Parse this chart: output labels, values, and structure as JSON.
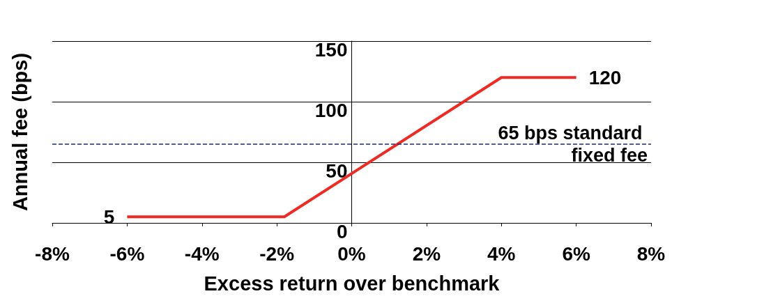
{
  "chart_data": {
    "type": "line",
    "xlabel": "Excess return over benchmark",
    "ylabel": "Annual fee (bps)",
    "x": [
      -6,
      -1.8,
      4,
      6
    ],
    "series": [
      {
        "color": "#ee2a24",
        "values": [
          5,
          5,
          120,
          120
        ],
        "value_labels": [
          "5",
          null,
          null,
          "120"
        ]
      }
    ],
    "xlim": [
      -8,
      8
    ],
    "xticks": [
      {
        "value": -8,
        "label": "-8%"
      },
      {
        "value": -6,
        "label": "-6%"
      },
      {
        "value": -4,
        "label": "-4%"
      },
      {
        "value": -2,
        "label": "-2%"
      },
      {
        "value": 0,
        "label": "0%"
      },
      {
        "value": 2,
        "label": "2%"
      },
      {
        "value": 4,
        "label": "4%"
      },
      {
        "value": 6,
        "label": "6%"
      },
      {
        "value": 8,
        "label": "8%"
      }
    ],
    "ylim": [
      0,
      150
    ],
    "yticks": [
      0,
      50,
      100,
      150
    ],
    "ref_lines": [
      {
        "axis": "y",
        "value": 65,
        "label": "65 bps standard fixed fee",
        "color": "#1f2a6e",
        "line_style": "dashed"
      }
    ],
    "grid": "y",
    "line_style": "solid"
  }
}
